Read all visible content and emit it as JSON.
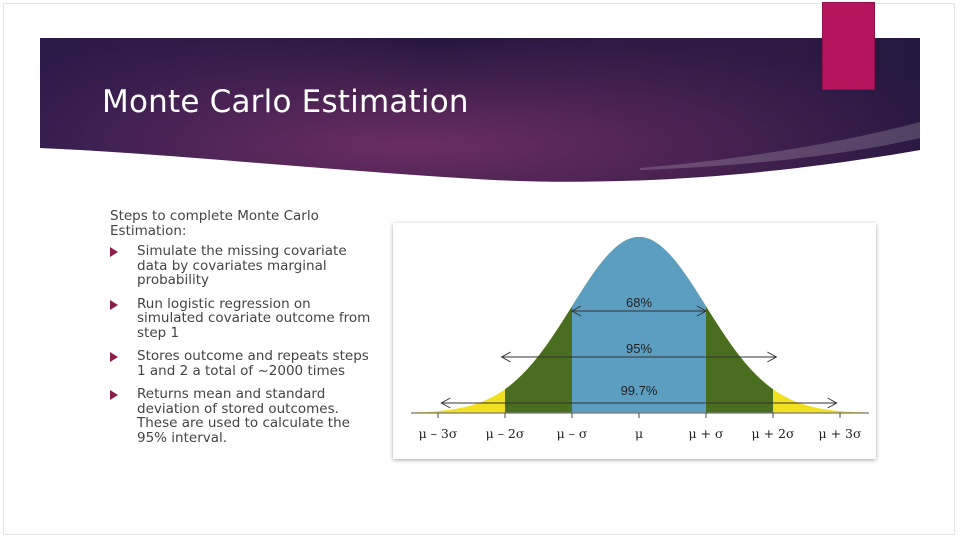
{
  "slide": {
    "title": "Monte Carlo Estimation",
    "intro": "Steps to complete Monte Carlo Estimation:",
    "bullets": [
      "Simulate the missing covariate data by covariates marginal probability",
      "Run logistic regression on simulated covariate outcome from step 1",
      "Stores outcome and repeats steps 1 and 2 a total of ~2000 times",
      "Returns mean and standard deviation of stored outcomes. These are used to calculate the 95% interval."
    ]
  },
  "colors": {
    "banner_left": "#2e1b4f",
    "banner_mid": "#6b2d63",
    "banner_right": "#24173f",
    "accent_tab": "#b5155d",
    "bullet_icon": "#8a1f4a",
    "band_1sd": "#5b9ec1",
    "band_2sd": "#4a6e1f",
    "band_3sd": "#f0e020"
  },
  "figure": {
    "icons": {
      "bullet": "triangle-right-icon",
      "interval_arrow": "double-arrow-icon"
    },
    "bands": [
      {
        "label": "68%",
        "sigma": 1
      },
      {
        "label": "95%",
        "sigma": 2
      },
      {
        "label": "99.7%",
        "sigma": 3
      }
    ],
    "ticks": [
      {
        "label": "μ – 3σ",
        "sigma": -3
      },
      {
        "label": "μ – 2σ",
        "sigma": -2
      },
      {
        "label": "μ – σ",
        "sigma": -1
      },
      {
        "label": "μ",
        "sigma": 0
      },
      {
        "label": "μ + σ",
        "sigma": 1
      },
      {
        "label": "μ + 2σ",
        "sigma": 2
      },
      {
        "label": "μ + 3σ",
        "sigma": 3
      }
    ]
  }
}
